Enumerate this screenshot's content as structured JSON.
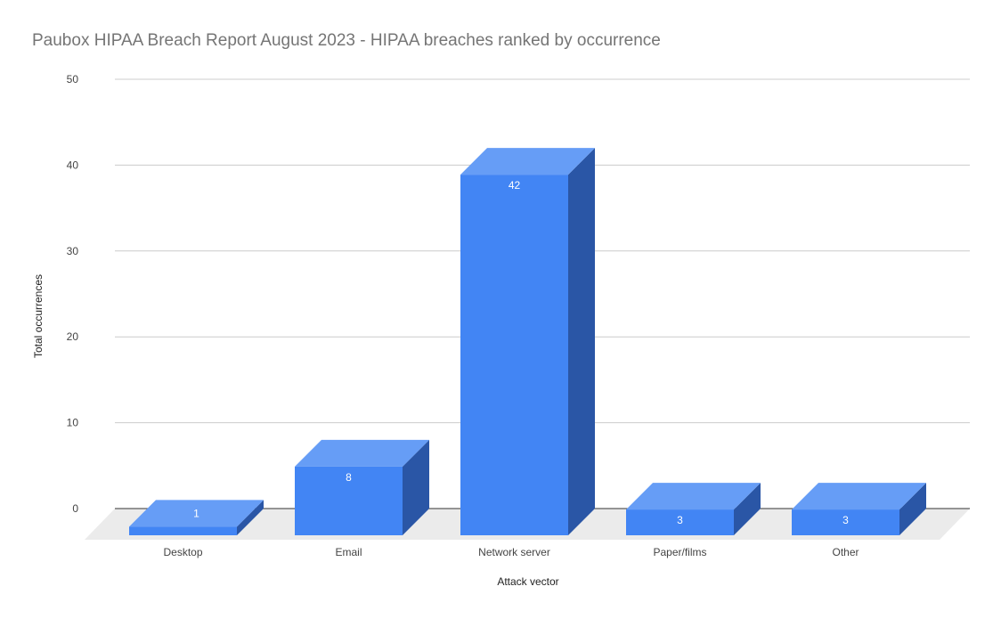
{
  "chart_data": {
    "type": "bar",
    "title": "Paubox HIPAA Breach Report August 2023 - HIPAA breaches ranked by occurrence",
    "xlabel": "Attack vector",
    "ylabel": "Total occurrences",
    "categories": [
      "Desktop",
      "Email",
      "Network server",
      "Paper/films",
      "Other"
    ],
    "values": [
      1,
      8,
      42,
      3,
      3
    ],
    "value_labels": [
      "1",
      "8",
      "42",
      "3",
      "3"
    ],
    "ylim": [
      0,
      50
    ],
    "yticks": [
      "0",
      "10",
      "20",
      "30",
      "40",
      "50"
    ],
    "grid": true,
    "legend": "none",
    "style": "3d-column",
    "colors": {
      "bar_front": "#4285f4",
      "bar_top": "#669df6",
      "bar_side": "#2a56a6",
      "floor": "#ebebeb",
      "gridline": "#cccccc"
    }
  }
}
